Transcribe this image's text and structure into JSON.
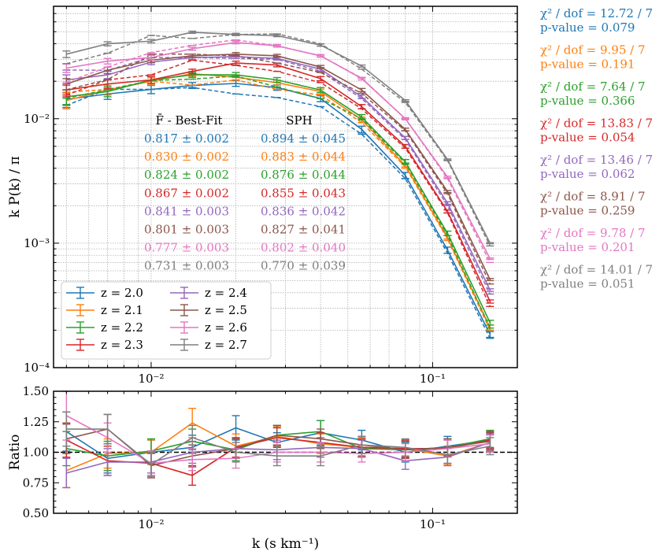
{
  "chart_data": [
    {
      "type": "line",
      "panel": "top",
      "xlabel": "k (s km⁻¹)",
      "ylabel": "k P(k) / π",
      "xscale": "log",
      "yscale": "log",
      "xlim": [
        0.0045,
        0.2
      ],
      "ylim": [
        0.0001,
        0.08
      ],
      "x_tick_labels": [
        {
          "v": 0.01,
          "text": "10⁻²"
        },
        {
          "v": 0.1,
          "text": "10⁻¹"
        }
      ],
      "y_tick_labels": [
        {
          "v": 0.0001,
          "text": "10⁻⁴"
        },
        {
          "v": 0.001,
          "text": "10⁻³"
        },
        {
          "v": 0.01,
          "text": "10⁻²"
        }
      ],
      "x": [
        0.005,
        0.007,
        0.01,
        0.014,
        0.02,
        0.028,
        0.04,
        0.056,
        0.08,
        0.113,
        0.16
      ],
      "series": [
        {
          "name": "z = 2.0",
          "color": "#1f77b4",
          "values": [
            0.0143,
            0.0158,
            0.0172,
            0.0185,
            0.0192,
            0.0178,
            0.0145,
            0.0082,
            0.0035,
            0.00088,
            0.000185
          ],
          "errors": [
            0.002,
            0.0015,
            0.0013,
            0.001,
            0.001,
            0.0009,
            0.0008,
            0.0005,
            0.0002,
            5e-05,
            1e-05
          ],
          "dashed": [
            0.0128,
            0.0172,
            0.0172,
            0.0178,
            0.0158,
            0.0148,
            0.0125,
            0.0075,
            0.0033,
            0.00083,
            0.000172
          ]
        },
        {
          "name": "z = 2.1",
          "color": "#ff7f0e",
          "values": [
            0.014,
            0.017,
            0.02,
            0.023,
            0.0215,
            0.0195,
            0.0165,
            0.0098,
            0.0042,
            0.0011,
            0.00021
          ],
          "errors": [
            0.002,
            0.0015,
            0.0013,
            0.001,
            0.001,
            0.0009,
            0.0008,
            0.0005,
            0.0002,
            5e-05,
            1e-05
          ],
          "dashed": [
            0.0163,
            0.0172,
            0.02,
            0.0186,
            0.0205,
            0.0172,
            0.0155,
            0.0093,
            0.0041,
            0.00108,
            0.0002
          ]
        },
        {
          "name": "z = 2.2",
          "color": "#2ca02c",
          "values": [
            0.015,
            0.0165,
            0.0205,
            0.0225,
            0.0225,
            0.0205,
            0.017,
            0.0103,
            0.0045,
            0.0012,
            0.00023
          ],
          "errors": [
            0.002,
            0.0015,
            0.0013,
            0.001,
            0.001,
            0.0009,
            0.0008,
            0.0005,
            0.0002,
            5e-05,
            1e-05
          ],
          "dashed": [
            0.0146,
            0.0171,
            0.0203,
            0.0208,
            0.022,
            0.018,
            0.0145,
            0.01,
            0.0044,
            0.00115,
            0.000208
          ]
        },
        {
          "name": "z = 2.3",
          "color": "#d62728",
          "values": [
            0.017,
            0.019,
            0.0205,
            0.024,
            0.028,
            0.027,
            0.021,
            0.0125,
            0.006,
            0.0018,
            0.00034
          ],
          "errors": [
            0.002,
            0.0015,
            0.0013,
            0.001,
            0.001,
            0.0009,
            0.0008,
            0.0005,
            0.0002,
            5e-05,
            1e-05
          ],
          "dashed": [
            0.0155,
            0.0205,
            0.0225,
            0.0295,
            0.0268,
            0.024,
            0.0195,
            0.012,
            0.0058,
            0.00175,
            0.00031
          ]
        },
        {
          "name": "z = 2.4",
          "color": "#9467bd",
          "values": [
            0.0205,
            0.0225,
            0.0285,
            0.031,
            0.0315,
            0.0305,
            0.025,
            0.015,
            0.007,
            0.0021,
            0.00042
          ],
          "errors": [
            0.002,
            0.0015,
            0.0013,
            0.001,
            0.001,
            0.0009,
            0.0008,
            0.0005,
            0.0002,
            5e-05,
            1e-05
          ],
          "dashed": [
            0.0246,
            0.0245,
            0.031,
            0.031,
            0.0305,
            0.03,
            0.024,
            0.0145,
            0.0068,
            0.002,
            0.00039
          ]
        },
        {
          "name": "z = 2.5",
          "color": "#8c564b",
          "values": [
            0.019,
            0.0245,
            0.0295,
            0.032,
            0.033,
            0.032,
            0.026,
            0.017,
            0.0082,
            0.0026,
            0.00051
          ],
          "errors": [
            0.002,
            0.0015,
            0.0013,
            0.001,
            0.001,
            0.0009,
            0.0008,
            0.0005,
            0.0002,
            5e-05,
            1e-05
          ],
          "dashed": [
            0.0171,
            0.0206,
            0.033,
            0.033,
            0.032,
            0.028,
            0.0235,
            0.016,
            0.008,
            0.0025,
            0.00047
          ]
        },
        {
          "name": "z = 2.6",
          "color": "#e377c2",
          "values": [
            0.0255,
            0.029,
            0.031,
            0.0365,
            0.041,
            0.0385,
            0.032,
            0.021,
            0.01,
            0.0034,
            0.00075
          ],
          "errors": [
            0.002,
            0.0015,
            0.0013,
            0.001,
            0.001,
            0.0009,
            0.0008,
            0.0005,
            0.0002,
            5e-05,
            1e-05
          ],
          "dashed": [
            0.0196,
            0.026,
            0.034,
            0.0388,
            0.043,
            0.0385,
            0.032,
            0.0212,
            0.01,
            0.0033,
            0.0007
          ]
        },
        {
          "name": "z = 2.7",
          "color": "#7f7f7f",
          "values": [
            0.033,
            0.04,
            0.042,
            0.0495,
            0.0475,
            0.0465,
            0.039,
            0.0265,
            0.014,
            0.0047,
            0.001
          ],
          "errors": [
            0.002,
            0.0015,
            0.0013,
            0.001,
            0.001,
            0.0009,
            0.0008,
            0.0005,
            0.0002,
            5e-05,
            1e-05
          ],
          "dashed": [
            0.0277,
            0.0336,
            0.0467,
            0.0441,
            0.0475,
            0.048,
            0.04,
            0.025,
            0.0135,
            0.0046,
            0.00095
          ]
        }
      ],
      "table": {
        "header_left": "F̄ - Best-Fit",
        "header_right": "SPH",
        "rows": [
          {
            "left": "0.817 ± 0.002",
            "right": "0.894 ± 0.045",
            "color": "#1f77b4"
          },
          {
            "left": "0.830 ± 0.002",
            "right": "0.883 ± 0.044",
            "color": "#ff7f0e"
          },
          {
            "left": "0.824 ± 0.002",
            "right": "0.876 ± 0.044",
            "color": "#2ca02c"
          },
          {
            "left": "0.867 ± 0.002",
            "right": "0.855 ± 0.043",
            "color": "#d62728"
          },
          {
            "left": "0.841 ± 0.003",
            "right": "0.836 ± 0.042",
            "color": "#9467bd"
          },
          {
            "left": "0.801 ± 0.003",
            "right": "0.827 ± 0.041",
            "color": "#8c564b"
          },
          {
            "left": "0.777 ± 0.003",
            "right": "0.802 ± 0.040",
            "color": "#e377c2"
          },
          {
            "left": "0.731 ± 0.003",
            "right": "0.770 ± 0.039",
            "color": "#7f7f7f"
          }
        ]
      },
      "legend_position": "lower-left"
    },
    {
      "type": "line",
      "panel": "bottom",
      "xlabel": "k (s km⁻¹)",
      "ylabel": "Ratio",
      "xscale": "log",
      "yscale": "linear",
      "xlim": [
        0.0045,
        0.2
      ],
      "ylim": [
        0.5,
        1.5
      ],
      "y_ticks": [
        "0.50",
        "0.75",
        "1.00",
        "1.25",
        "1.50"
      ],
      "x_tick_labels": [
        {
          "v": 0.01,
          "text": "10⁻²"
        },
        {
          "v": 0.1,
          "text": "10⁻¹"
        }
      ],
      "reference_line": 1.0,
      "x": [
        0.005,
        0.007,
        0.01,
        0.014,
        0.02,
        0.028,
        0.04,
        0.056,
        0.08,
        0.113,
        0.16
      ],
      "series": [
        {
          "name": "z = 2.0",
          "color": "#1f77b4",
          "values": [
            1.17,
            0.95,
            1.0,
            1.04,
            1.2,
            1.08,
            1.16,
            1.1,
            1.0,
            1.05,
            1.1
          ],
          "errors": [
            0.16,
            0.12,
            0.1,
            0.1,
            0.1,
            0.08,
            0.1,
            0.08,
            0.08,
            0.08,
            0.07
          ]
        },
        {
          "name": "z = 2.1",
          "color": "#ff7f0e",
          "values": [
            0.85,
            0.99,
            1.0,
            1.24,
            1.05,
            1.13,
            1.07,
            1.04,
            1.03,
            0.97,
            1.08
          ],
          "errors": [
            0.14,
            0.12,
            0.1,
            0.12,
            0.1,
            0.08,
            0.08,
            0.08,
            0.07,
            0.07,
            0.07
          ]
        },
        {
          "name": "z = 2.2",
          "color": "#2ca02c",
          "values": [
            1.03,
            0.97,
            1.01,
            1.09,
            1.02,
            1.14,
            1.17,
            1.03,
            1.02,
            1.04,
            1.11
          ],
          "errors": [
            0.14,
            0.12,
            0.1,
            0.1,
            0.09,
            0.08,
            0.09,
            0.07,
            0.07,
            0.07,
            0.07
          ]
        },
        {
          "name": "z = 2.3",
          "color": "#d62728",
          "values": [
            1.1,
            0.93,
            0.91,
            0.81,
            1.04,
            1.12,
            1.08,
            1.04,
            1.03,
            1.03,
            1.1
          ],
          "errors": [
            0.14,
            0.12,
            0.1,
            0.08,
            0.08,
            0.08,
            0.08,
            0.07,
            0.07,
            0.07,
            0.07
          ]
        },
        {
          "name": "z = 2.4",
          "color": "#9467bd",
          "values": [
            0.83,
            0.92,
            0.92,
            1.0,
            1.03,
            1.02,
            1.04,
            1.03,
            0.93,
            0.96,
            1.08
          ],
          "errors": [
            0.12,
            0.11,
            0.09,
            0.09,
            0.08,
            0.08,
            0.08,
            0.07,
            0.07,
            0.07,
            0.07
          ]
        },
        {
          "name": "z = 2.5",
          "color": "#8c564b",
          "values": [
            1.11,
            1.19,
            0.89,
            0.97,
            1.03,
            1.14,
            1.11,
            1.06,
            1.02,
            1.04,
            1.09
          ],
          "errors": [
            0.12,
            0.12,
            0.1,
            0.09,
            0.08,
            0.08,
            0.08,
            0.07,
            0.07,
            0.07,
            0.07
          ]
        },
        {
          "name": "z = 2.6",
          "color": "#e377c2",
          "values": [
            1.3,
            1.12,
            0.91,
            0.94,
            0.95,
            1.0,
            1.0,
            0.99,
            1.0,
            1.03,
            1.07
          ],
          "errors": [
            0.2,
            0.12,
            0.1,
            0.09,
            0.08,
            0.08,
            0.08,
            0.07,
            0.07,
            0.07,
            0.07
          ]
        },
        {
          "name": "z = 2.7",
          "color": "#7f7f7f",
          "values": [
            1.19,
            1.19,
            0.9,
            1.12,
            1.0,
            0.97,
            0.97,
            1.06,
            1.04,
            0.98,
            1.05
          ],
          "errors": [
            0.14,
            0.12,
            0.1,
            0.1,
            0.08,
            0.08,
            0.08,
            0.07,
            0.07,
            0.07,
            0.07
          ]
        }
      ]
    }
  ],
  "stats": [
    {
      "chi2": "χ² / dof = 12.72 / 7",
      "pvalue": "p-value = 0.079",
      "color": "#1f77b4"
    },
    {
      "chi2": "χ² / dof = 9.95 / 7",
      "pvalue": "p-value = 0.191",
      "color": "#ff7f0e"
    },
    {
      "chi2": "χ² / dof = 7.64 / 7",
      "pvalue": "p-value = 0.366",
      "color": "#2ca02c"
    },
    {
      "chi2": "χ² / dof = 13.83 / 7",
      "pvalue": "p-value = 0.054",
      "color": "#d62728"
    },
    {
      "chi2": "χ² / dof = 13.46 / 7",
      "pvalue": "p-value = 0.062",
      "color": "#9467bd"
    },
    {
      "chi2": "χ² / dof = 8.91 / 7",
      "pvalue": "p-value = 0.259",
      "color": "#8c564b"
    },
    {
      "chi2": "χ² / dof = 9.78 / 7",
      "pvalue": "p-value = 0.201",
      "color": "#e377c2"
    },
    {
      "chi2": "χ² / dof = 14.01 / 7",
      "pvalue": "p-value = 0.051",
      "color": "#7f7f7f"
    }
  ]
}
